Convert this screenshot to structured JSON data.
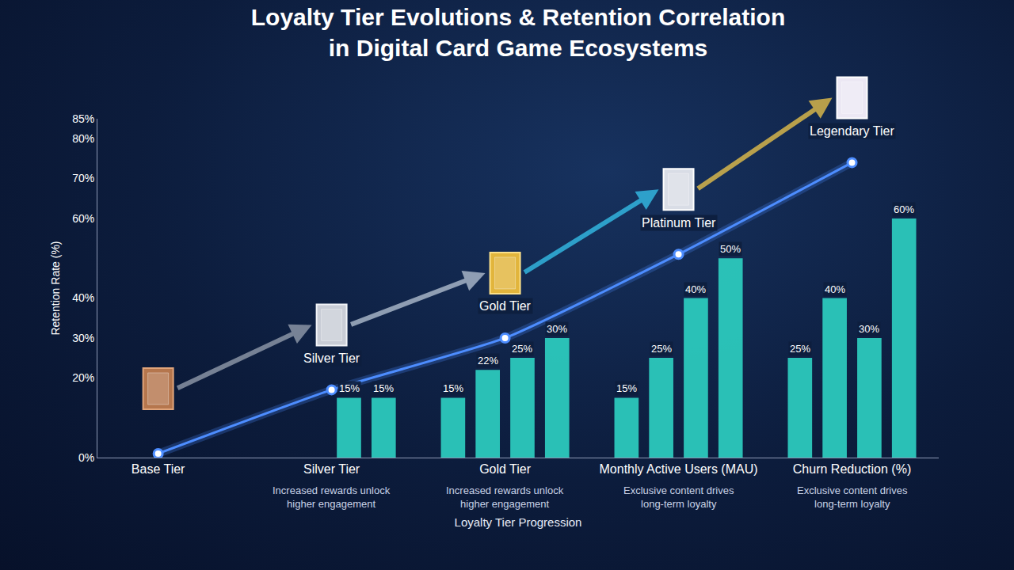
{
  "chart_data": {
    "type": "bar",
    "title": "Loyalty Tier Evolutions & Retention Correlation in Digital Card Game Ecosystems",
    "x_label": "Loyalty Tier Progression",
    "y_label": "Retention Rate (%)",
    "categories": [
      "Base Tier",
      "Silver Tier",
      "Gold Tier",
      "Monthly Active Users (MAU)",
      "Churn Reduction (%)"
    ],
    "category_notes": [
      null,
      "Increased rewards unlock higher engagement",
      "Increased rewards unlock higher engagement",
      "Exclusive content drives long-term loyalty",
      "Exclusive content drives long-term loyalty"
    ],
    "ylim": [
      0,
      85
    ],
    "yticks": [
      {
        "value": 0,
        "label": "0%"
      },
      {
        "value": 20,
        "label": "20%"
      },
      {
        "value": 30,
        "label": "30%"
      },
      {
        "value": 40,
        "label": "40%"
      },
      {
        "value": 60,
        "label": "60%"
      },
      {
        "value": 70,
        "label": "70%"
      },
      {
        "value": 80,
        "label": "80%"
      },
      {
        "value": 85,
        "label": "85%"
      }
    ],
    "grid": false,
    "series": [
      {
        "type": "bar",
        "color": "#2cc9bd",
        "data_labels": true,
        "values": [
          null,
          null,
          15,
          15,
          25
        ],
        "value_labels": [
          null,
          null,
          "15%",
          "15%",
          "25%"
        ]
      },
      {
        "type": "bar",
        "color": "#2cc9bd",
        "data_labels": true,
        "values": [
          null,
          null,
          22,
          25,
          40
        ],
        "value_labels": [
          null,
          null,
          "22%",
          "25%",
          "40%"
        ]
      },
      {
        "type": "bar",
        "color": "#2cc9bd",
        "data_labels": true,
        "values": [
          null,
          15,
          25,
          40,
          30
        ],
        "value_labels": [
          null,
          "15%",
          "25%",
          "40%",
          "30%"
        ]
      },
      {
        "type": "bar",
        "color": "#2cc9bd",
        "data_labels": true,
        "values": [
          null,
          15,
          30,
          50,
          60
        ],
        "value_labels": [
          null,
          "15%",
          "30%",
          "50%",
          "60%"
        ]
      },
      {
        "type": "line",
        "color": "#4d8dff",
        "marker": "circle",
        "line_style": "solid",
        "data_labels": false,
        "values": [
          1,
          17,
          30,
          51,
          74
        ],
        "point_labels": [
          null,
          "Silver Tier",
          "Gold Tier",
          "Platinum Tier",
          "Legendary Tier"
        ]
      }
    ]
  }
}
